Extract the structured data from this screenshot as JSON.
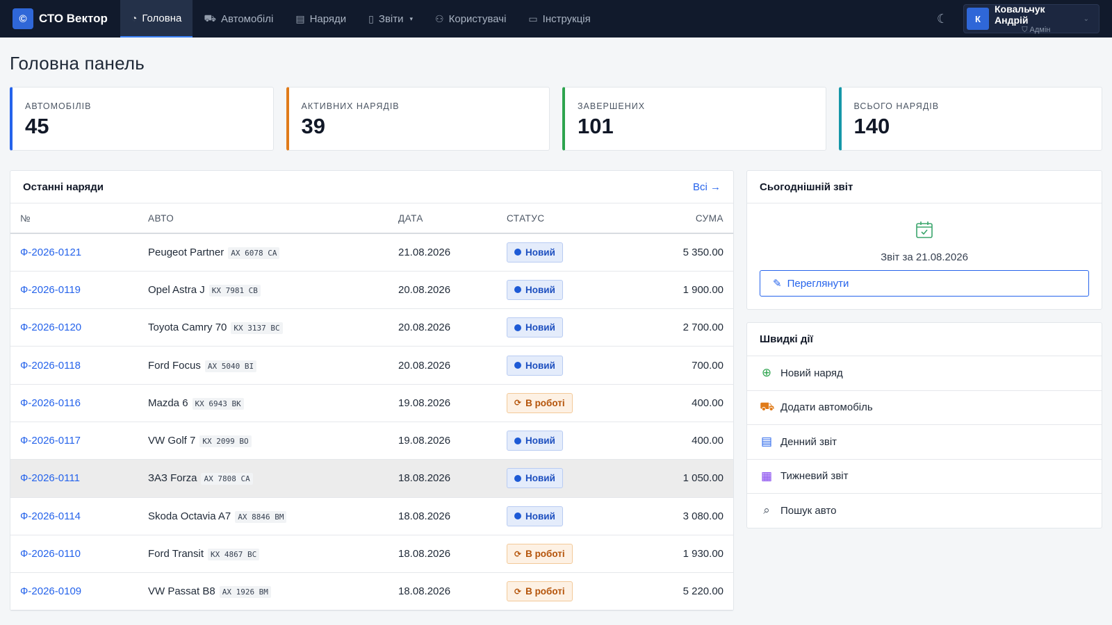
{
  "app": {
    "logo_glyph": "©",
    "name": "СТО Вектор"
  },
  "nav": [
    {
      "label": "Головна",
      "icon": "dashboard-icon",
      "glyph": "◔"
    },
    {
      "label": "Автомобілі",
      "icon": "truck-icon",
      "glyph": "⛟"
    },
    {
      "label": "Наряди",
      "icon": "clipboard-icon",
      "glyph": "▤"
    },
    {
      "label": "Звіти",
      "icon": "document-icon",
      "glyph": "▯"
    },
    {
      "label": "Користувачі",
      "icon": "users-icon",
      "glyph": "⚇"
    },
    {
      "label": "Інструкція",
      "icon": "book-icon",
      "glyph": "▭"
    }
  ],
  "theme_glyph": "☾",
  "user": {
    "initial": "К",
    "name": "Ковальчук Андрій",
    "role": "Адмін",
    "role_glyph": "⛉"
  },
  "page_title": "Головна панель",
  "stats": [
    {
      "label": "Автомобілів",
      "value": "45",
      "color": "#2563eb"
    },
    {
      "label": "Активних нарядів",
      "value": "39",
      "color": "#e07b1a"
    },
    {
      "label": "Завершених",
      "value": "101",
      "color": "#2ea44f"
    },
    {
      "label": "Всього нарядів",
      "value": "140",
      "color": "#1597a8"
    }
  ],
  "orders": {
    "title": "Останні наряди",
    "all_link": "Всі →",
    "columns": {
      "num": "№",
      "car": "Авто",
      "date": "Дата",
      "status": "Статус",
      "sum": "Сума"
    },
    "rows": [
      {
        "num": "Ф-2026-0121",
        "car": "Peugeot Partner",
        "plate": "AX 6078 CA",
        "date": "21.08.2026",
        "status": "Новий",
        "kind": "new",
        "sum": "5 350.00"
      },
      {
        "num": "Ф-2026-0119",
        "car": "Opel Astra J",
        "plate": "KX 7981 CB",
        "date": "20.08.2026",
        "status": "Новий",
        "kind": "new",
        "sum": "1 900.00"
      },
      {
        "num": "Ф-2026-0120",
        "car": "Toyota Camry 70",
        "plate": "KX 3137 BC",
        "date": "20.08.2026",
        "status": "Новий",
        "kind": "new",
        "sum": "2 700.00"
      },
      {
        "num": "Ф-2026-0118",
        "car": "Ford Focus",
        "plate": "AX 5040 BI",
        "date": "20.08.2026",
        "status": "Новий",
        "kind": "new",
        "sum": "700.00"
      },
      {
        "num": "Ф-2026-0116",
        "car": "Mazda 6",
        "plate": "KX 6943 BK",
        "date": "19.08.2026",
        "status": "В роботі",
        "kind": "work",
        "sum": "400.00"
      },
      {
        "num": "Ф-2026-0117",
        "car": "VW Golf 7",
        "plate": "KX 2099 BO",
        "date": "19.08.2026",
        "status": "Новий",
        "kind": "new",
        "sum": "400.00"
      },
      {
        "num": "Ф-2026-0111",
        "car": "ЗАЗ Forza",
        "plate": "AX 7808 CA",
        "date": "18.08.2026",
        "status": "Новий",
        "kind": "new",
        "sum": "1 050.00"
      },
      {
        "num": "Ф-2026-0114",
        "car": "Skoda Octavia A7",
        "plate": "AX 8846 BM",
        "date": "18.08.2026",
        "status": "Новий",
        "kind": "new",
        "sum": "3 080.00"
      },
      {
        "num": "Ф-2026-0110",
        "car": "Ford Transit",
        "plate": "KX 4867 BC",
        "date": "18.08.2026",
        "status": "В роботі",
        "kind": "work",
        "sum": "1 930.00"
      },
      {
        "num": "Ф-2026-0109",
        "car": "VW Passat B8",
        "plate": "AX 1926 BM",
        "date": "18.08.2026",
        "status": "В роботі",
        "kind": "work",
        "sum": "5 220.00"
      }
    ]
  },
  "today_report": {
    "title": "Сьогоднішній звіт",
    "text": "Звіт за 21.08.2026",
    "button": "Переглянути"
  },
  "quick_actions": {
    "title": "Швидкі дії",
    "items": [
      {
        "label": "Новий наряд",
        "icon": "plus-circle-icon",
        "glyph": "⊕",
        "color": "#2ea44f"
      },
      {
        "label": "Додати автомобіль",
        "icon": "truck-icon",
        "glyph": "⛟",
        "color": "#e07b1a"
      },
      {
        "label": "Денний звіт",
        "icon": "document-icon",
        "glyph": "▤",
        "color": "#2563eb"
      },
      {
        "label": "Тижневий звіт",
        "icon": "calendar-icon",
        "glyph": "▦",
        "color": "#7c3aed"
      },
      {
        "label": "Пошук авто",
        "icon": "search-icon",
        "glyph": "⌕",
        "color": "#4b5563"
      }
    ]
  }
}
